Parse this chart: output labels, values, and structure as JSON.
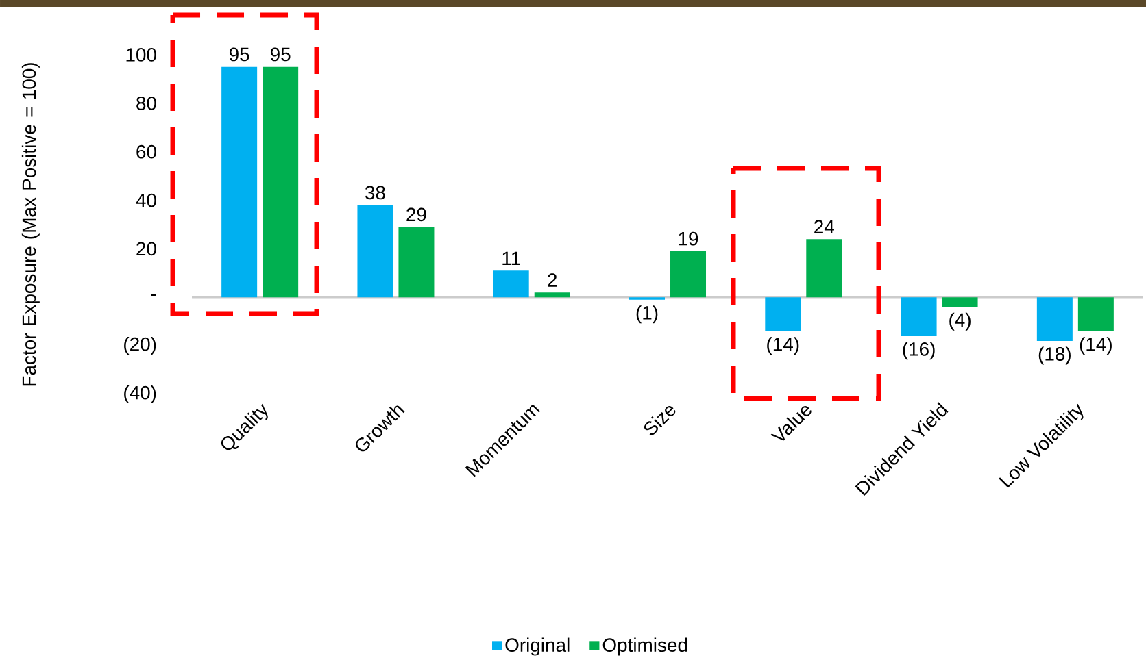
{
  "chart_data": {
    "type": "bar",
    "ylabel": "Factor Exposure (Max Positive = 100)",
    "categories": [
      "Quality",
      "Growth",
      "Momentum",
      "Size",
      "Value",
      "Dividend Yield",
      "Low Volatility"
    ],
    "series": [
      {
        "name": "Original",
        "color": "#00b0f0",
        "values": [
          95,
          38,
          11,
          -1,
          -14,
          -16,
          -18
        ],
        "value_labels": [
          "95",
          "38",
          "11",
          "(1)",
          "(14)",
          "(16)",
          "(18)"
        ]
      },
      {
        "name": "Optimised",
        "color": "#00b050",
        "values": [
          95,
          29,
          2,
          19,
          24,
          -4,
          -14
        ],
        "value_labels": [
          "95",
          "29",
          "2",
          "19",
          "24",
          "(4)",
          "(14)"
        ]
      }
    ],
    "ylim": [
      -40,
      100
    ],
    "yticks": [
      {
        "value": -40,
        "label": "(40)"
      },
      {
        "value": -20,
        "label": "(20)"
      },
      {
        "value": 0,
        "label": "-"
      },
      20,
      40,
      60,
      80,
      100
    ],
    "legend": "bottom"
  }
}
